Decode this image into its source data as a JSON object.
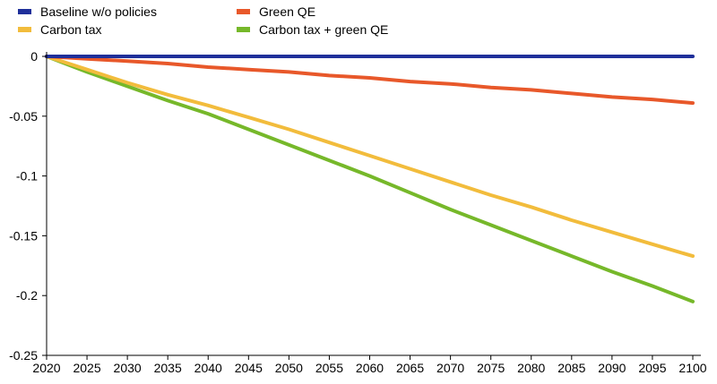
{
  "chart_data": {
    "type": "line",
    "title": "",
    "xlabel": "",
    "ylabel": "",
    "xlim": [
      2020,
      2101
    ],
    "ylim": [
      -0.25,
      0
    ],
    "x_ticks": [
      2020,
      2025,
      2030,
      2035,
      2040,
      2045,
      2050,
      2055,
      2060,
      2065,
      2070,
      2075,
      2080,
      2085,
      2090,
      2095,
      2100
    ],
    "x_tick_labels": [
      "2020",
      "2025",
      "2030",
      "2035",
      "2040",
      "2045",
      "2050",
      "2055",
      "2060",
      "2065",
      "2070",
      "2075",
      "2080",
      "2085",
      "2090",
      "2095",
      "2100"
    ],
    "y_ticks": [
      0,
      -0.05,
      -0.1,
      -0.15,
      -0.2,
      -0.25
    ],
    "y_tick_labels": [
      "0",
      "-0.05",
      "-0.1",
      "-0.15",
      "-0.2",
      "-0.25"
    ],
    "grid": false,
    "legend_position": "top",
    "x": [
      2020,
      2025,
      2030,
      2035,
      2040,
      2045,
      2050,
      2055,
      2060,
      2065,
      2070,
      2075,
      2080,
      2085,
      2090,
      2095,
      2100
    ],
    "series": [
      {
        "name": "Baseline w/o policies",
        "color": "#1f2f9a",
        "values": [
          0,
          0,
          0,
          0,
          0,
          0,
          0,
          0,
          0,
          0,
          0,
          0,
          0,
          0,
          0,
          0,
          0
        ]
      },
      {
        "name": "Green QE",
        "color": "#e8582a",
        "values": [
          0,
          -0.002,
          -0.004,
          -0.006,
          -0.009,
          -0.011,
          -0.013,
          -0.016,
          -0.018,
          -0.021,
          -0.023,
          -0.026,
          -0.028,
          -0.031,
          -0.034,
          -0.036,
          -0.039
        ]
      },
      {
        "name": "Carbon tax",
        "color": "#f2bc3c",
        "values": [
          0,
          -0.011,
          -0.022,
          -0.032,
          -0.041,
          -0.051,
          -0.061,
          -0.072,
          -0.083,
          -0.094,
          -0.105,
          -0.116,
          -0.126,
          -0.137,
          -0.147,
          -0.157,
          -0.167
        ]
      },
      {
        "name": "Carbon tax + green QE",
        "color": "#76b82a",
        "values": [
          0,
          -0.013,
          -0.025,
          -0.037,
          -0.048,
          -0.061,
          -0.074,
          -0.087,
          -0.1,
          -0.114,
          -0.128,
          -0.141,
          -0.154,
          -0.167,
          -0.18,
          -0.192,
          -0.205
        ]
      }
    ]
  }
}
